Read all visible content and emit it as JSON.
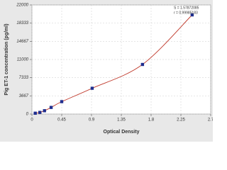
{
  "chart_data": {
    "type": "scatter",
    "x_label": "Optical Density",
    "y_label": "Pig ET-1 concentration (pg/ml)",
    "annotations": [
      "S = 1.57872085",
      "r = 0.99985183"
    ],
    "x": [
      0.05,
      0.12,
      0.19,
      0.29,
      0.45,
      0.91,
      1.67,
      2.42
    ],
    "values": [
      170,
      330,
      670,
      1333,
      2500,
      5200,
      10000,
      20000
    ],
    "color": "#1f2f8f",
    "line_color": "#c0392b",
    "smooth_line": true,
    "xlim": [
      0,
      2.7
    ],
    "xticks": [
      0,
      0.45,
      0.9,
      1.35,
      1.8,
      2.25,
      2.7
    ],
    "ylim": [
      0,
      22000
    ],
    "yticks": [
      0,
      3667,
      7333,
      11000,
      14667,
      18333,
      22000
    ],
    "grid": true
  }
}
